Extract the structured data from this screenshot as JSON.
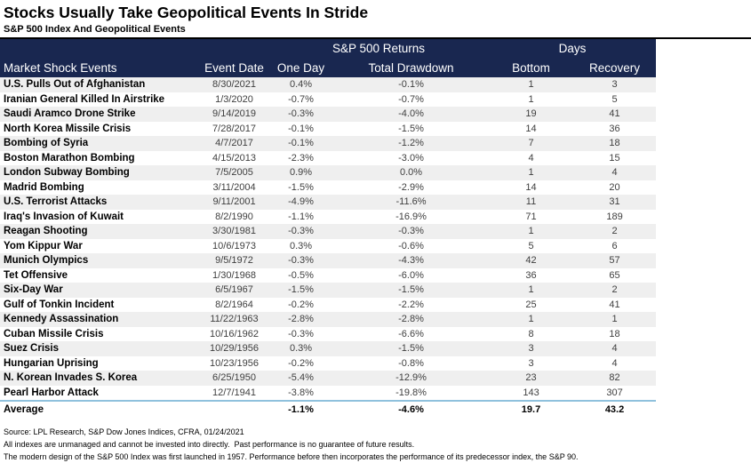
{
  "title": "Stocks Usually Take Geopolitical Events In Stride",
  "subtitle": "S&P 500 Index And Geopolitical Events",
  "chart_data": {
    "type": "table",
    "group_headers": {
      "returns": "S&P 500 Returns",
      "days": "Days"
    },
    "columns": [
      "Market Shock Events",
      "Event Date",
      "One Day",
      "Total Drawdown",
      "Bottom",
      "Recovery"
    ],
    "rows": [
      [
        "U.S. Pulls Out of Afghanistan",
        "8/30/2021",
        "0.4%",
        "-0.1%",
        "1",
        "3"
      ],
      [
        "Iranian General Killed In Airstrike",
        "1/3/2020",
        "-0.7%",
        "-0.7%",
        "1",
        "5"
      ],
      [
        "Saudi Aramco Drone Strike",
        "9/14/2019",
        "-0.3%",
        "-4.0%",
        "19",
        "41"
      ],
      [
        "North Korea Missile Crisis",
        "7/28/2017",
        "-0.1%",
        "-1.5%",
        "14",
        "36"
      ],
      [
        "Bombing of Syria",
        "4/7/2017",
        "-0.1%",
        "-1.2%",
        "7",
        "18"
      ],
      [
        "Boston Marathon Bombing",
        "4/15/2013",
        "-2.3%",
        "-3.0%",
        "4",
        "15"
      ],
      [
        "London Subway Bombing",
        "7/5/2005",
        "0.9%",
        "0.0%",
        "1",
        "4"
      ],
      [
        "Madrid Bombing",
        "3/11/2004",
        "-1.5%",
        "-2.9%",
        "14",
        "20"
      ],
      [
        "U.S. Terrorist Attacks",
        "9/11/2001",
        "-4.9%",
        "-11.6%",
        "11",
        "31"
      ],
      [
        "Iraq's Invasion of Kuwait",
        "8/2/1990",
        "-1.1%",
        "-16.9%",
        "71",
        "189"
      ],
      [
        "Reagan Shooting",
        "3/30/1981",
        "-0.3%",
        "-0.3%",
        "1",
        "2"
      ],
      [
        "Yom Kippur War",
        "10/6/1973",
        "0.3%",
        "-0.6%",
        "5",
        "6"
      ],
      [
        "Munich Olympics",
        "9/5/1972",
        "-0.3%",
        "-4.3%",
        "42",
        "57"
      ],
      [
        "Tet Offensive",
        "1/30/1968",
        "-0.5%",
        "-6.0%",
        "36",
        "65"
      ],
      [
        "Six-Day War",
        "6/5/1967",
        "-1.5%",
        "-1.5%",
        "1",
        "2"
      ],
      [
        "Gulf of Tonkin Incident",
        "8/2/1964",
        "-0.2%",
        "-2.2%",
        "25",
        "41"
      ],
      [
        "Kennedy Assassination",
        "11/22/1963",
        "-2.8%",
        "-2.8%",
        "1",
        "1"
      ],
      [
        "Cuban Missile Crisis",
        "10/16/1962",
        "-0.3%",
        "-6.6%",
        "8",
        "18"
      ],
      [
        "Suez Crisis",
        "10/29/1956",
        "0.3%",
        "-1.5%",
        "3",
        "4"
      ],
      [
        "Hungarian Uprising",
        "10/23/1956",
        "-0.2%",
        "-0.8%",
        "3",
        "4"
      ],
      [
        "N. Korean Invades S. Korea",
        "6/25/1950",
        "-5.4%",
        "-12.9%",
        "23",
        "82"
      ],
      [
        "Pearl Harbor Attack",
        "12/7/1941",
        "-3.8%",
        "-19.8%",
        "143",
        "307"
      ]
    ],
    "average_row": [
      "Average",
      "",
      "-1.1%",
      "-4.6%",
      "19.7",
      "43.2"
    ]
  },
  "footnotes": [
    "Source: LPL Research, S&P Dow Jones Indices, CFRA, 01/24/2021",
    "All indexes are unmanaged and cannot be invested into directly.  Past performance is no guarantee of future results.",
    "The modern design of the S&P 500 Index was first launched in 1957. Performance before then incorporates the performance of its predecessor index, the S&P 90."
  ],
  "colors": {
    "header_bg": "#192750",
    "header_text": "#ffffff",
    "row_stripe": "#efefef",
    "average_divider": "#8fc1dd",
    "title_rule": "#000000"
  }
}
